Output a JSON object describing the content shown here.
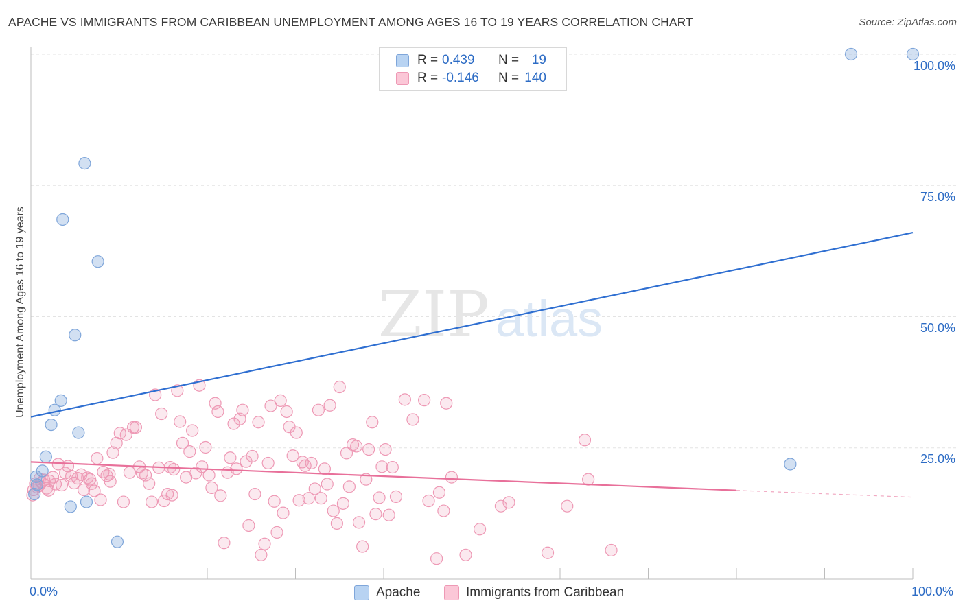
{
  "chart_data": {
    "type": "scatter",
    "title": "APACHE VS IMMIGRANTS FROM CARIBBEAN UNEMPLOYMENT AMONG AGES 16 TO 19 YEARS CORRELATION CHART",
    "source": "Source: ZipAtlas.com",
    "xlabel": "",
    "ylabel": "Unemployment Among Ages 16 to 19 years",
    "xlim": [
      0,
      100
    ],
    "ylim": [
      0,
      100
    ],
    "x_tick_labels": [
      "0.0%",
      "100.0%"
    ],
    "y_tick_labels": [
      "25.0%",
      "50.0%",
      "75.0%",
      "100.0%"
    ],
    "y_tick_values": [
      25,
      50,
      75,
      100
    ],
    "watermark": {
      "part1": "ZIP",
      "part2": "atlas"
    },
    "legend": [
      {
        "name": "Apache",
        "r_label": "R =",
        "r_value": "0.439",
        "n_label": "N =",
        "n_value": "19",
        "color": "#7fa6da",
        "fill": "#b8d3f2"
      },
      {
        "name": "Immigrants from Caribbean",
        "r_label": "R =",
        "r_value": "-0.146",
        "n_label": "N =",
        "n_value": "140",
        "color": "#ee99b5",
        "fill": "#fbc7d7"
      }
    ],
    "series": [
      {
        "name": "Apache",
        "color": "#7fa6da",
        "trend": {
          "color": "#2f6fd1",
          "x": [
            0,
            100
          ],
          "y": [
            30.9,
            66.0
          ]
        },
        "points": [
          [
            0.4,
            16.2
          ],
          [
            0.6,
            19.5
          ],
          [
            0.7,
            18.0
          ],
          [
            1.3,
            20.6
          ],
          [
            1.7,
            23.3
          ],
          [
            2.3,
            29.4
          ],
          [
            2.7,
            32.2
          ],
          [
            3.4,
            34.0
          ],
          [
            3.6,
            68.5
          ],
          [
            4.5,
            13.8
          ],
          [
            5.0,
            46.5
          ],
          [
            5.4,
            27.9
          ],
          [
            6.1,
            79.2
          ],
          [
            6.3,
            14.7
          ],
          [
            7.6,
            60.5
          ],
          [
            9.8,
            7.1
          ],
          [
            86.1,
            21.9
          ],
          [
            93.0,
            100.0
          ],
          [
            100.0,
            100.0
          ]
        ]
      },
      {
        "name": "Immigrants from Caribbean",
        "color": "#ee99b5",
        "trend": {
          "color": "#e8709a",
          "x": [
            0,
            80
          ],
          "y": [
            22.3,
            16.9
          ],
          "dash_x": [
            80,
            100
          ],
          "dash_y": [
            16.9,
            15.6
          ]
        },
        "points": [
          [
            0.3,
            17.0
          ],
          [
            0.5,
            18.2
          ],
          [
            0.7,
            17.5
          ],
          [
            1.0,
            19.1
          ],
          [
            1.2,
            18.4
          ],
          [
            1.5,
            18.9
          ],
          [
            1.8,
            17.3
          ],
          [
            2.1,
            18.7
          ],
          [
            2.5,
            19.4
          ],
          [
            2.8,
            18.1
          ],
          [
            3.1,
            21.9
          ],
          [
            3.5,
            17.9
          ],
          [
            3.9,
            20.2
          ],
          [
            4.2,
            21.5
          ],
          [
            4.6,
            19.6
          ],
          [
            4.9,
            18.3
          ],
          [
            5.3,
            19.2
          ],
          [
            5.7,
            19.9
          ],
          [
            6.0,
            17.0
          ],
          [
            6.4,
            19.3
          ],
          [
            6.9,
            18.2
          ],
          [
            7.2,
            16.8
          ],
          [
            7.5,
            23.0
          ],
          [
            7.9,
            15.1
          ],
          [
            8.2,
            20.4
          ],
          [
            8.6,
            19.7
          ],
          [
            9.0,
            18.6
          ],
          [
            9.3,
            24.1
          ],
          [
            9.7,
            25.9
          ],
          [
            10.1,
            27.8
          ],
          [
            10.5,
            14.7
          ],
          [
            10.8,
            27.5
          ],
          [
            11.2,
            20.3
          ],
          [
            11.6,
            28.9
          ],
          [
            11.9,
            28.9
          ],
          [
            12.3,
            21.4
          ],
          [
            12.6,
            20.2
          ],
          [
            13.0,
            19.8
          ],
          [
            13.4,
            18.2
          ],
          [
            13.7,
            14.7
          ],
          [
            14.1,
            35.1
          ],
          [
            14.5,
            21.2
          ],
          [
            14.8,
            31.5
          ],
          [
            15.1,
            14.9
          ],
          [
            15.5,
            16.2
          ],
          [
            15.8,
            21.3
          ],
          [
            16.2,
            20.9
          ],
          [
            16.6,
            35.9
          ],
          [
            16.9,
            30.0
          ],
          [
            17.2,
            25.9
          ],
          [
            17.6,
            19.4
          ],
          [
            18.0,
            24.3
          ],
          [
            18.3,
            28.3
          ],
          [
            18.7,
            20.2
          ],
          [
            19.1,
            36.9
          ],
          [
            19.4,
            21.4
          ],
          [
            19.8,
            25.1
          ],
          [
            20.2,
            19.8
          ],
          [
            20.5,
            17.4
          ],
          [
            20.9,
            33.5
          ],
          [
            21.2,
            31.9
          ],
          [
            21.5,
            15.9
          ],
          [
            21.9,
            6.9
          ],
          [
            22.3,
            20.3
          ],
          [
            22.6,
            23.1
          ],
          [
            23.0,
            29.6
          ],
          [
            23.3,
            21.0
          ],
          [
            23.7,
            30.5
          ],
          [
            24.0,
            32.2
          ],
          [
            24.4,
            22.4
          ],
          [
            24.7,
            10.2
          ],
          [
            25.1,
            23.4
          ],
          [
            25.4,
            16.2
          ],
          [
            25.8,
            29.9
          ],
          [
            26.1,
            4.6
          ],
          [
            26.5,
            6.7
          ],
          [
            26.9,
            22.1
          ],
          [
            27.2,
            33.0
          ],
          [
            27.6,
            14.8
          ],
          [
            27.9,
            8.9
          ],
          [
            28.3,
            34.0
          ],
          [
            28.6,
            12.6
          ],
          [
            29.0,
            31.9
          ],
          [
            29.3,
            29.0
          ],
          [
            29.7,
            23.5
          ],
          [
            30.1,
            27.9
          ],
          [
            30.4,
            15.0
          ],
          [
            30.8,
            22.3
          ],
          [
            31.1,
            21.6
          ],
          [
            31.5,
            15.4
          ],
          [
            31.8,
            22.1
          ],
          [
            32.2,
            17.2
          ],
          [
            32.6,
            32.2
          ],
          [
            32.9,
            15.4
          ],
          [
            33.3,
            21.0
          ],
          [
            33.6,
            18.1
          ],
          [
            33.9,
            33.1
          ],
          [
            34.3,
            13.0
          ],
          [
            34.7,
            10.6
          ],
          [
            35.0,
            36.6
          ],
          [
            35.4,
            14.4
          ],
          [
            35.8,
            24.0
          ],
          [
            36.1,
            17.6
          ],
          [
            36.5,
            25.6
          ],
          [
            36.9,
            25.3
          ],
          [
            37.2,
            10.8
          ],
          [
            37.6,
            6.2
          ],
          [
            38.0,
            19.0
          ],
          [
            38.3,
            24.7
          ],
          [
            38.7,
            29.9
          ],
          [
            39.1,
            12.4
          ],
          [
            39.5,
            15.5
          ],
          [
            39.8,
            21.4
          ],
          [
            40.2,
            24.7
          ],
          [
            40.6,
            12.2
          ],
          [
            41.0,
            21.3
          ],
          [
            41.4,
            15.7
          ],
          [
            42.4,
            34.2
          ],
          [
            43.3,
            30.4
          ],
          [
            44.6,
            34.1
          ],
          [
            45.1,
            14.9
          ],
          [
            46.0,
            3.9
          ],
          [
            46.3,
            16.5
          ],
          [
            46.8,
            13.0
          ],
          [
            47.1,
            33.5
          ],
          [
            47.7,
            19.4
          ],
          [
            49.3,
            4.6
          ],
          [
            50.9,
            9.5
          ],
          [
            53.3,
            13.9
          ],
          [
            54.2,
            14.6
          ],
          [
            58.6,
            5.0
          ],
          [
            60.8,
            13.9
          ],
          [
            62.8,
            26.5
          ],
          [
            63.2,
            19.0
          ],
          [
            65.8,
            5.5
          ],
          [
            0.2,
            16.0
          ],
          [
            0.9,
            17.8
          ],
          [
            2.0,
            16.9
          ],
          [
            6.7,
            19.0
          ],
          [
            8.9,
            20.0
          ],
          [
            16.0,
            16.0
          ]
        ]
      }
    ]
  }
}
